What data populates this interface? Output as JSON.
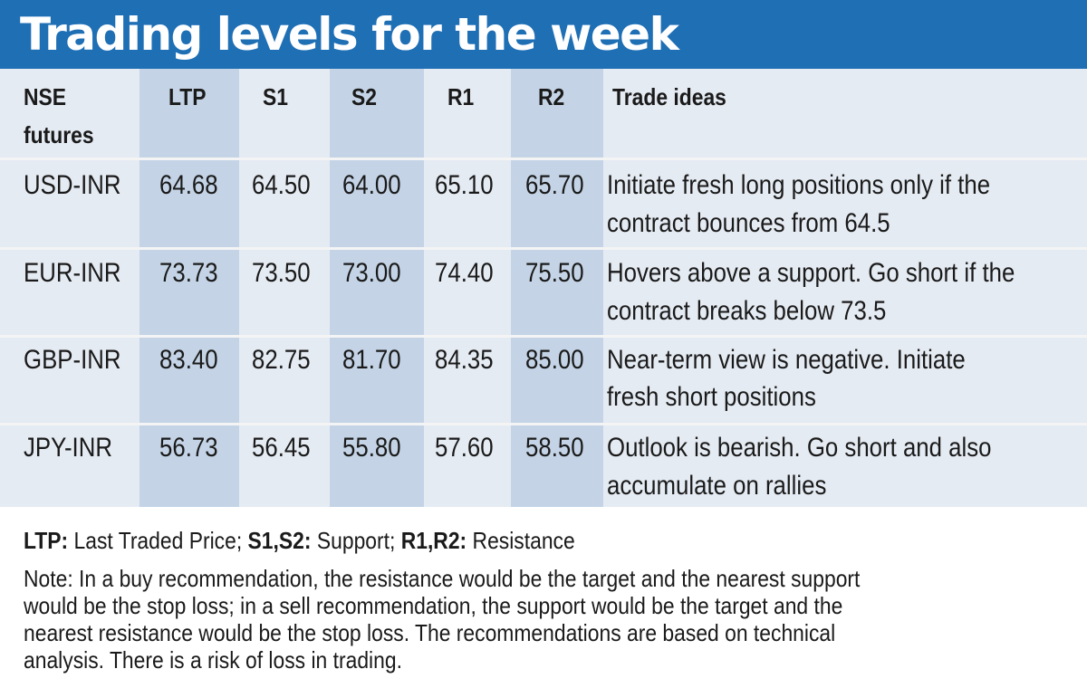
{
  "title": "Trading levels for the week",
  "columns": {
    "instrument": "NSE futures",
    "ltp": "LTP",
    "s1": "S1",
    "s2": "S2",
    "r1": "R1",
    "r2": "R2",
    "ideas": "Trade ideas"
  },
  "rows": [
    {
      "instrument": "USD-INR",
      "ltp": "64.68",
      "s1": "64.50",
      "s2": "64.00",
      "r1": "65.10",
      "r2": "65.70",
      "idea_line1": "Initiate fresh long positions only if the",
      "idea_line2": "contract bounces from 64.5"
    },
    {
      "instrument": "EUR-INR",
      "ltp": "73.73",
      "s1": "73.50",
      "s2": "73.00",
      "r1": "74.40",
      "r2": "75.50",
      "idea_line1": "Hovers above a support. Go short if the",
      "idea_line2": "contract breaks below 73.5"
    },
    {
      "instrument": "GBP-INR",
      "ltp": "83.40",
      "s1": "82.75",
      "s2": "81.70",
      "r1": "84.35",
      "r2": "85.00",
      "idea_line1": "Near-term view is negative. Initiate",
      "idea_line2": "fresh short positions"
    },
    {
      "instrument": "JPY-INR",
      "ltp": "56.73",
      "s1": "56.45",
      "s2": "55.80",
      "r1": "57.60",
      "r2": "58.50",
      "idea_line1": "Outlook is bearish. Go short and also",
      "idea_line2": "accumulate on rallies"
    }
  ],
  "legend": {
    "ltp_key": "LTP:",
    "ltp_text": " Last Traded Price; ",
    "support_key": "S1,S2:",
    "support_text": " Support; ",
    "resistance_key": "R1,R2:",
    "resistance_text": " Resistance"
  },
  "note_lines": [
    "Note: In a buy recommendation, the resistance would be the target and the nearest support",
    "would be the stop loss; in a sell recommendation, the support would be the target and the",
    "nearest resistance would be the stop loss. The recommendations are based on technical",
    "analysis. There is a risk of loss in trading."
  ],
  "colors": {
    "header_bg": "#1f6fb5",
    "table_bg": "#e5ebf3",
    "column_shade": "#c4d4e6"
  }
}
